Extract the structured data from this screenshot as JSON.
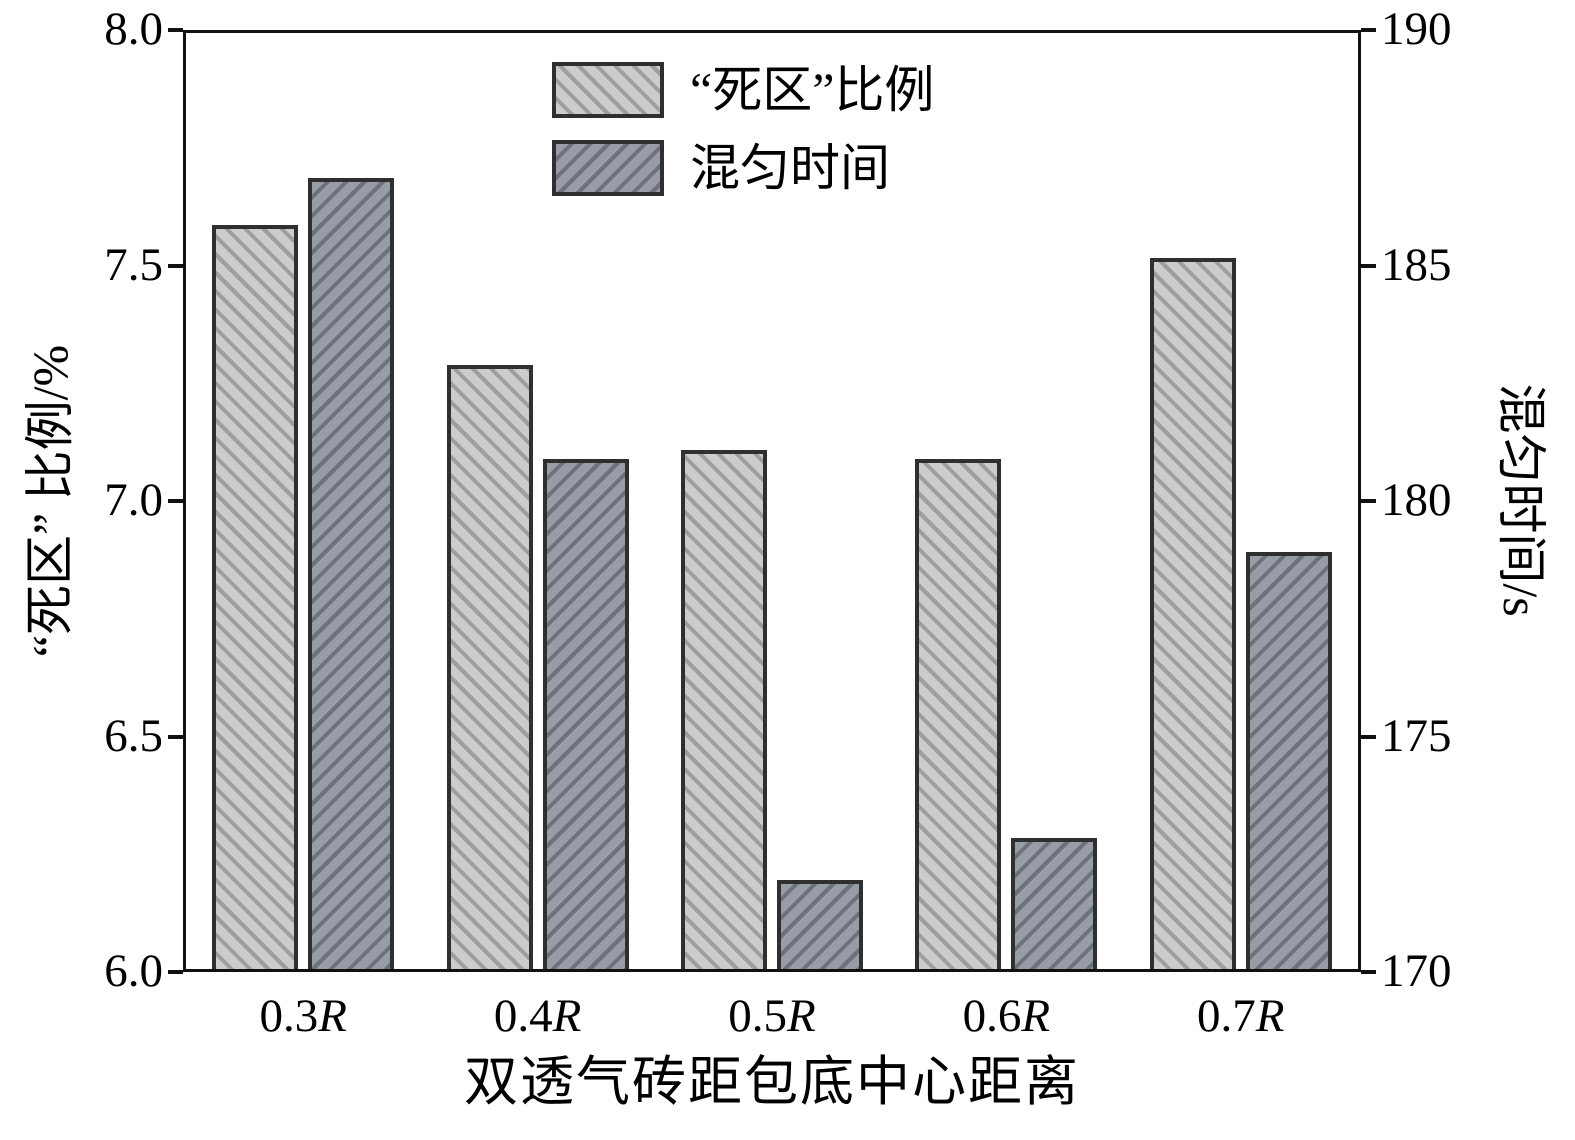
{
  "chart_data": {
    "type": "bar",
    "title": "",
    "xlabel": "双透气砖距包底中心距离",
    "categories": [
      "0.3R",
      "0.4R",
      "0.5R",
      "0.6R",
      "0.7R"
    ],
    "series": [
      {
        "name": "“死区”比例",
        "axis": "left",
        "unit": "%",
        "values": [
          7.59,
          7.29,
          7.11,
          7.09,
          7.52
        ]
      },
      {
        "name": "混匀时间",
        "axis": "right",
        "unit": "s",
        "values": [
          186.9,
          180.9,
          171.9,
          172.8,
          178.9
        ]
      }
    ],
    "left_axis": {
      "label": "“死区” 比例/%",
      "min": 6.0,
      "max": 8.0,
      "ticks": [
        "6.0",
        "6.5",
        "7.0",
        "7.5",
        "8.0"
      ]
    },
    "right_axis": {
      "label": "混匀时间/s",
      "min": 170,
      "max": 190,
      "ticks": [
        "170",
        "175",
        "180",
        "185",
        "190"
      ]
    },
    "legend": {
      "position": "top-center",
      "items": [
        "“死区”比例",
        "混匀时间"
      ]
    },
    "grid": "off",
    "colors": {
      "light_bar_fill": "#cccccc",
      "light_bar_hatch": "#9e9e9e",
      "dark_bar_fill": "#979ca6",
      "dark_bar_hatch": "#6d727c",
      "bar_border": "#2f2f2f",
      "axis": "#111111"
    }
  }
}
